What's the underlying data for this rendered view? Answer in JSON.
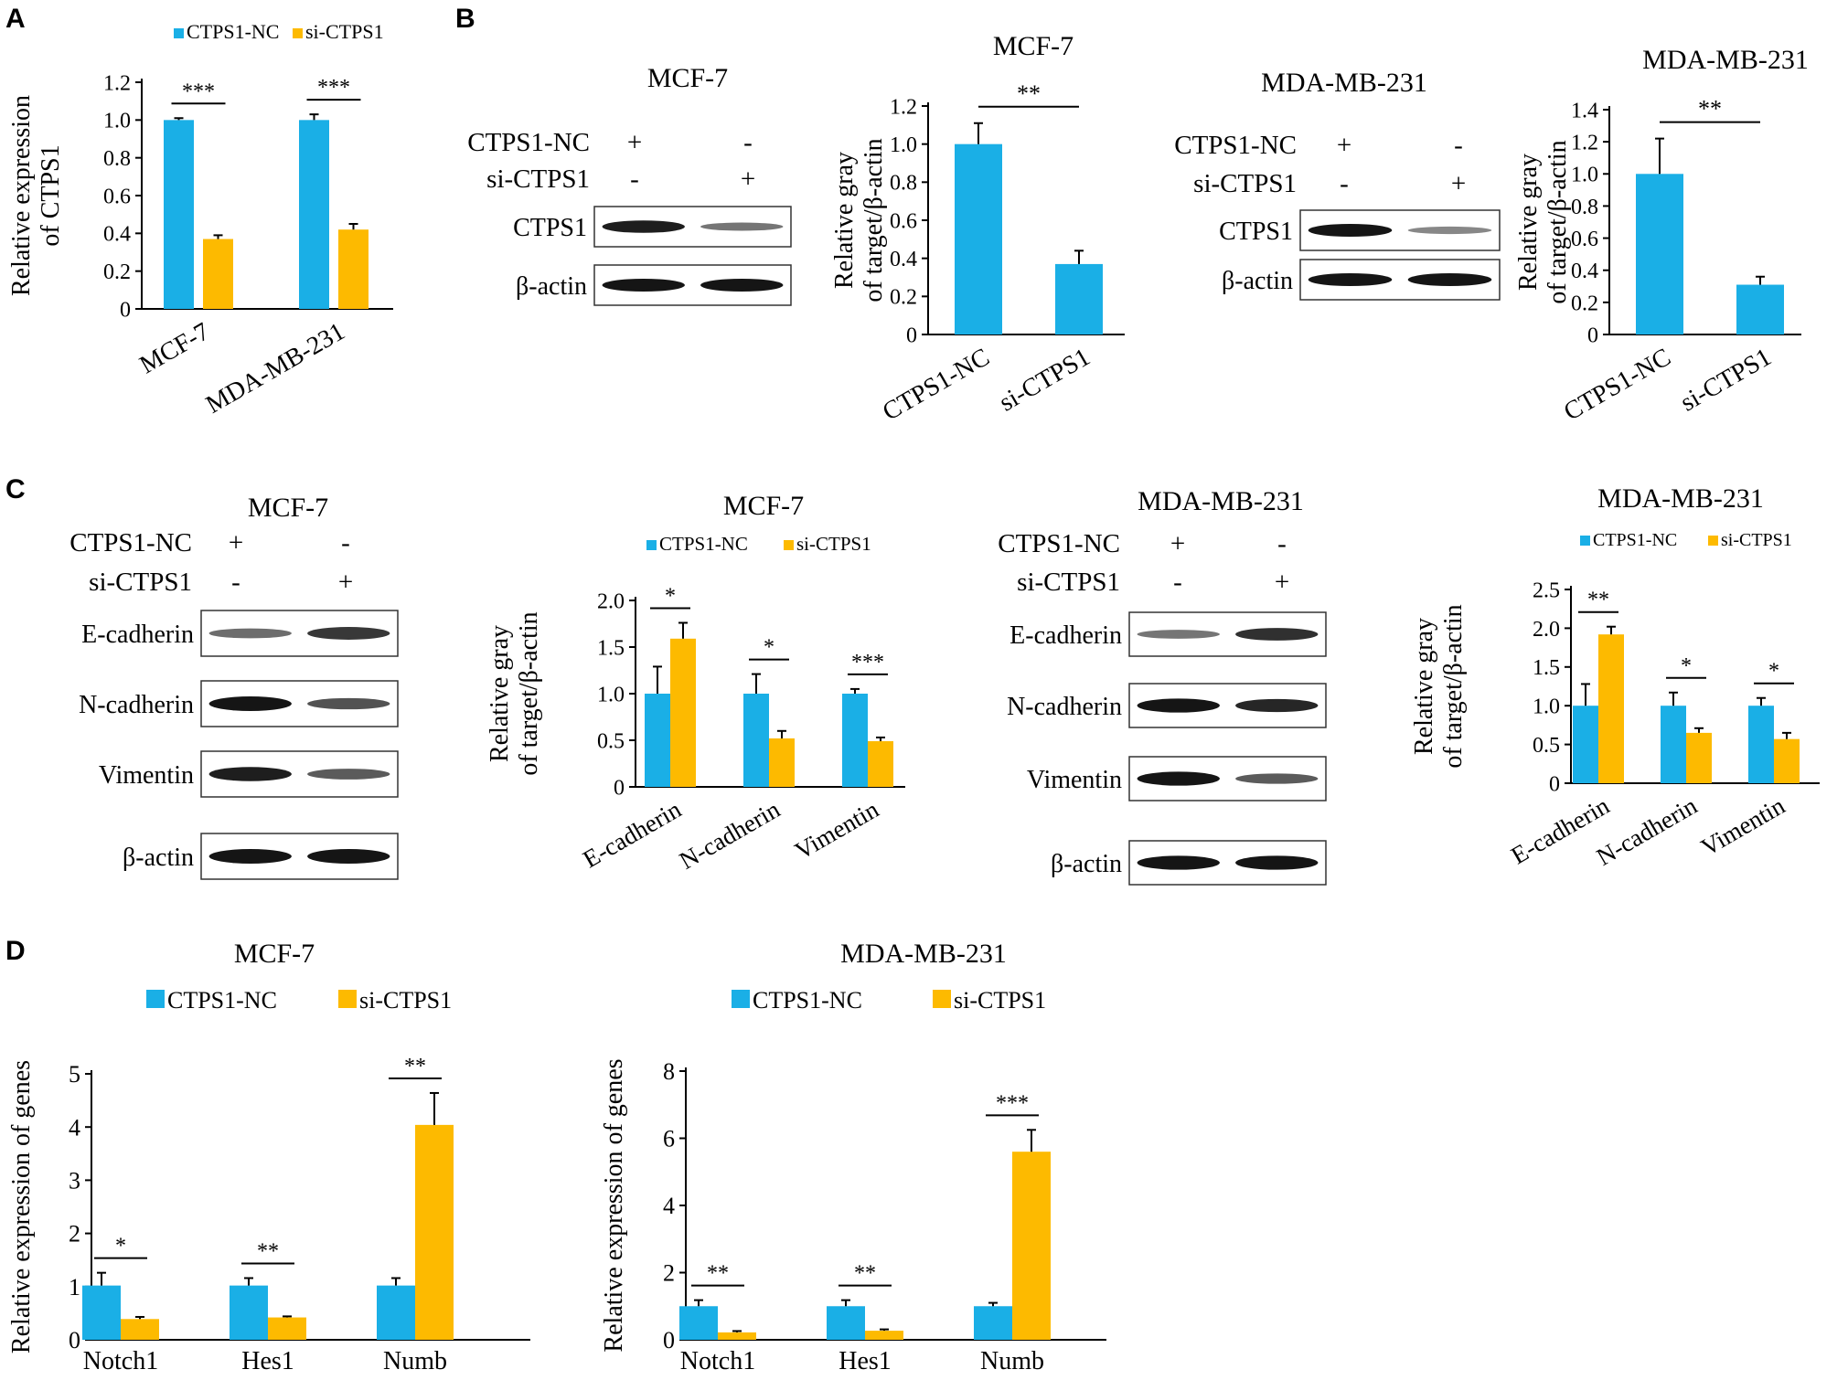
{
  "panel_labels": [
    "A",
    "B",
    "C",
    "D"
  ],
  "colors": {
    "nc": "#1AAFE6",
    "si": "#FDBA00",
    "band": "#151515"
  },
  "blots": [
    {
      "id": "B-MCF7",
      "title": "MCF-7",
      "cond_rows": [
        {
          "label": "CTPS1-NC",
          "marks": [
            "+",
            "-"
          ]
        },
        {
          "label": "si-CTPS1",
          "marks": [
            "-",
            "+"
          ]
        }
      ],
      "bands": [
        {
          "label": "CTPS1",
          "intensity": [
            0.95,
            0.45
          ]
        },
        {
          "label": "β-actin",
          "intensity": [
            1.0,
            1.0
          ]
        }
      ]
    },
    {
      "id": "B-MDA",
      "title": "MDA-MB-231",
      "cond_rows": [
        {
          "label": "CTPS1-NC",
          "marks": [
            "+",
            "-"
          ]
        },
        {
          "label": "si-CTPS1",
          "marks": [
            "-",
            "+"
          ]
        }
      ],
      "bands": [
        {
          "label": "CTPS1",
          "intensity": [
            1.0,
            0.35
          ]
        },
        {
          "label": "β-actin",
          "intensity": [
            1.0,
            1.0
          ]
        }
      ]
    },
    {
      "id": "C-MCF7",
      "title": "MCF-7",
      "cond_rows": [
        {
          "label": "CTPS1-NC",
          "marks": [
            "+",
            "-"
          ]
        },
        {
          "label": "si-CTPS1",
          "marks": [
            "-",
            "+"
          ]
        }
      ],
      "bands": [
        {
          "label": "E-cadherin",
          "intensity": [
            0.5,
            0.8
          ]
        },
        {
          "label": "N-cadherin",
          "intensity": [
            1.0,
            0.65
          ]
        },
        {
          "label": "Vimentin",
          "intensity": [
            0.95,
            0.6
          ]
        },
        {
          "label": "β-actin",
          "intensity": [
            1.0,
            1.0
          ]
        }
      ]
    },
    {
      "id": "C-MDA",
      "title": "MDA-MB-231",
      "cond_rows": [
        {
          "label": "CTPS1-NC",
          "marks": [
            "+",
            "-"
          ]
        },
        {
          "label": "si-CTPS1",
          "marks": [
            "-",
            "+"
          ]
        }
      ],
      "bands": [
        {
          "label": "E-cadherin",
          "intensity": [
            0.45,
            0.85
          ]
        },
        {
          "label": "N-cadherin",
          "intensity": [
            1.0,
            0.9
          ]
        },
        {
          "label": "Vimentin",
          "intensity": [
            1.0,
            0.6
          ]
        },
        {
          "label": "β-actin",
          "intensity": [
            1.0,
            1.0
          ]
        }
      ]
    }
  ],
  "chart_data": [
    {
      "id": "A",
      "type": "bar",
      "title": "",
      "ylabel": [
        "Relative expression",
        "of CTPS1"
      ],
      "categories": [
        "MCF-7",
        "MDA-MB-231"
      ],
      "series": [
        {
          "name": "CTPS1-NC",
          "values": [
            1.0,
            1.0
          ],
          "errors": [
            0.01,
            0.03
          ]
        },
        {
          "name": "si-CTPS1",
          "values": [
            0.37,
            0.42
          ],
          "errors": [
            0.02,
            0.03
          ]
        }
      ],
      "ylim": [
        0,
        1.2
      ],
      "yticks": [
        "0",
        "0.2",
        "0.4",
        "0.6",
        "0.8",
        "1.0",
        "1.2"
      ],
      "significance": [
        "***",
        "***"
      ],
      "legend": "top"
    },
    {
      "id": "B-MCF7",
      "type": "bar",
      "title": "MCF-7",
      "ylabel": [
        "Relative gray",
        "of target/β-actin"
      ],
      "categories": [
        "CTPS1-NC",
        "si-CTPS1"
      ],
      "values": [
        1.0,
        0.37
      ],
      "errors": [
        0.11,
        0.07
      ],
      "ylim": [
        0,
        1.2
      ],
      "yticks": [
        "0",
        "0.2",
        "0.4",
        "0.6",
        "0.8",
        "1.0",
        "1.2"
      ],
      "significance": [
        "**"
      ]
    },
    {
      "id": "B-MDA",
      "type": "bar",
      "title": "MDA-MB-231",
      "ylabel": [
        "Relative gray",
        "of target/β-actin"
      ],
      "categories": [
        "CTPS1-NC",
        "si-CTPS1"
      ],
      "values": [
        1.0,
        0.31
      ],
      "errors": [
        0.22,
        0.05
      ],
      "ylim": [
        0,
        1.4
      ],
      "yticks": [
        "0",
        "0.2",
        "0.4",
        "0.6",
        "0.8",
        "1.0",
        "1.2",
        "1.4"
      ],
      "significance": [
        "**"
      ]
    },
    {
      "id": "C-MCF7",
      "type": "bar",
      "title": "MCF-7",
      "ylabel": [
        "Relative gray",
        "of target/β-actin"
      ],
      "categories": [
        "E-cadherin",
        "N-cadherin",
        "Vimentin"
      ],
      "series": [
        {
          "name": "CTPS1-NC",
          "values": [
            1.0,
            1.0,
            1.0
          ],
          "errors": [
            0.29,
            0.21,
            0.05
          ]
        },
        {
          "name": "si-CTPS1",
          "values": [
            1.59,
            0.52,
            0.49
          ],
          "errors": [
            0.17,
            0.08,
            0.04
          ]
        }
      ],
      "ylim": [
        0,
        2.0
      ],
      "yticks": [
        "0",
        "0.5",
        "1.0",
        "1.5",
        "2.0"
      ],
      "significance": [
        "*",
        "*",
        "***"
      ],
      "legend": "top"
    },
    {
      "id": "C-MDA",
      "type": "bar",
      "title": "MDA-MB-231",
      "ylabel": [
        "Relative gray",
        "of target/β-actin"
      ],
      "categories": [
        "E-cadherin",
        "N-cadherin",
        "Vimentin"
      ],
      "series": [
        {
          "name": "CTPS1-NC",
          "values": [
            1.0,
            1.0,
            1.0
          ],
          "errors": [
            0.28,
            0.17,
            0.1
          ]
        },
        {
          "name": "si-CTPS1",
          "values": [
            1.92,
            0.65,
            0.57
          ],
          "errors": [
            0.1,
            0.06,
            0.08
          ]
        }
      ],
      "ylim": [
        0,
        2.5
      ],
      "yticks": [
        "0",
        "0.5",
        "1.0",
        "1.5",
        "2.0",
        "2.5"
      ],
      "significance": [
        "**",
        "*",
        "*"
      ],
      "legend": "top"
    },
    {
      "id": "D-MCF7",
      "type": "bar",
      "title": "MCF-7",
      "ylabel": [
        "Relative expression of genes"
      ],
      "categories": [
        "Notch1",
        "Hes1",
        "Numb"
      ],
      "series": [
        {
          "name": "CTPS1-NC",
          "values": [
            1.02,
            1.02,
            1.02
          ],
          "errors": [
            0.24,
            0.14,
            0.14
          ]
        },
        {
          "name": "si-CTPS1",
          "values": [
            0.39,
            0.42,
            4.04
          ],
          "errors": [
            0.04,
            0.02,
            0.6
          ]
        }
      ],
      "ylim": [
        0,
        5
      ],
      "yticks": [
        "0",
        "1",
        "2",
        "3",
        "4",
        "5"
      ],
      "significance": [
        "*",
        "**",
        "**"
      ],
      "legend": "top"
    },
    {
      "id": "D-MDA",
      "type": "bar",
      "title": "MDA-MB-231",
      "ylabel": [
        "Relative expression of genes"
      ],
      "categories": [
        "Notch1",
        "Hes1",
        "Numb"
      ],
      "series": [
        {
          "name": "CTPS1-NC",
          "values": [
            1.0,
            1.0,
            1.0
          ],
          "errors": [
            0.18,
            0.18,
            0.1
          ]
        },
        {
          "name": "si-CTPS1",
          "values": [
            0.22,
            0.27,
            5.6
          ],
          "errors": [
            0.04,
            0.04,
            0.65
          ]
        }
      ],
      "ylim": [
        0,
        8
      ],
      "yticks": [
        "0",
        "2",
        "4",
        "6",
        "8"
      ],
      "significance": [
        "**",
        "**",
        "***"
      ],
      "legend": "top"
    }
  ]
}
